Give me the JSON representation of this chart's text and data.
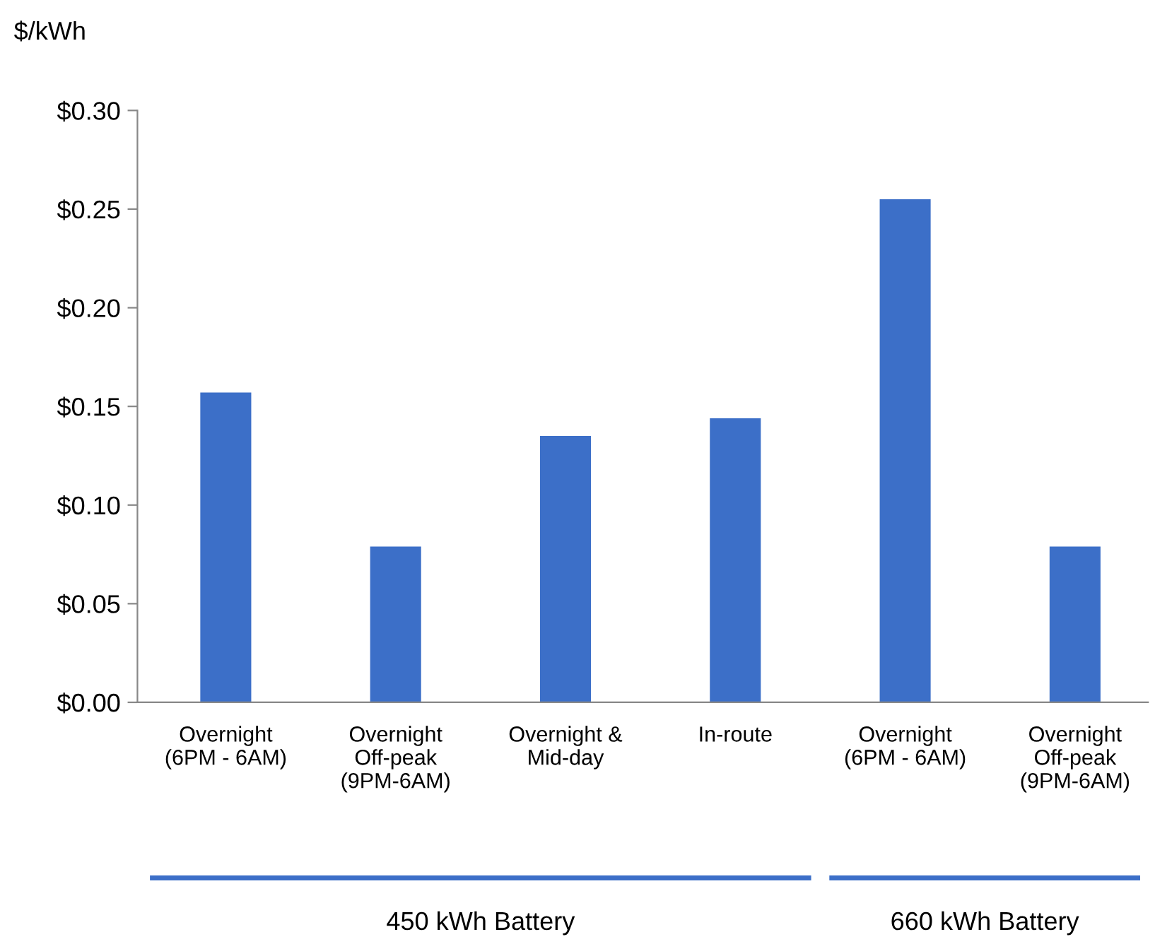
{
  "chart_data": {
    "type": "bar",
    "ylabel": "$/kWh",
    "categories": [
      "Overnight\n(6PM - 6AM)",
      "Overnight\nOff-peak\n(9PM-6AM)",
      "Overnight &\nMid-day",
      "In-route",
      "Overnight\n(6PM - 6AM)",
      "Overnight\nOff-peak\n(9PM-6AM)"
    ],
    "values": [
      0.157,
      0.079,
      0.135,
      0.144,
      0.255,
      0.079
    ],
    "color": "#3c6fc8",
    "ylim": [
      0,
      0.3
    ],
    "yticks": [
      {
        "value": 0,
        "label": "$0.00"
      },
      {
        "value": 0.05,
        "label": "$0.05"
      },
      {
        "value": 0.1,
        "label": "$0.10"
      },
      {
        "value": 0.15,
        "label": "$0.15"
      },
      {
        "value": 0.2,
        "label": "$0.20"
      },
      {
        "value": 0.25,
        "label": "$0.25"
      },
      {
        "value": 0.3,
        "label": "$0.30"
      }
    ],
    "grid": false,
    "annotations": [
      "450 kWh Battery",
      "660 kWh Battery"
    ]
  }
}
